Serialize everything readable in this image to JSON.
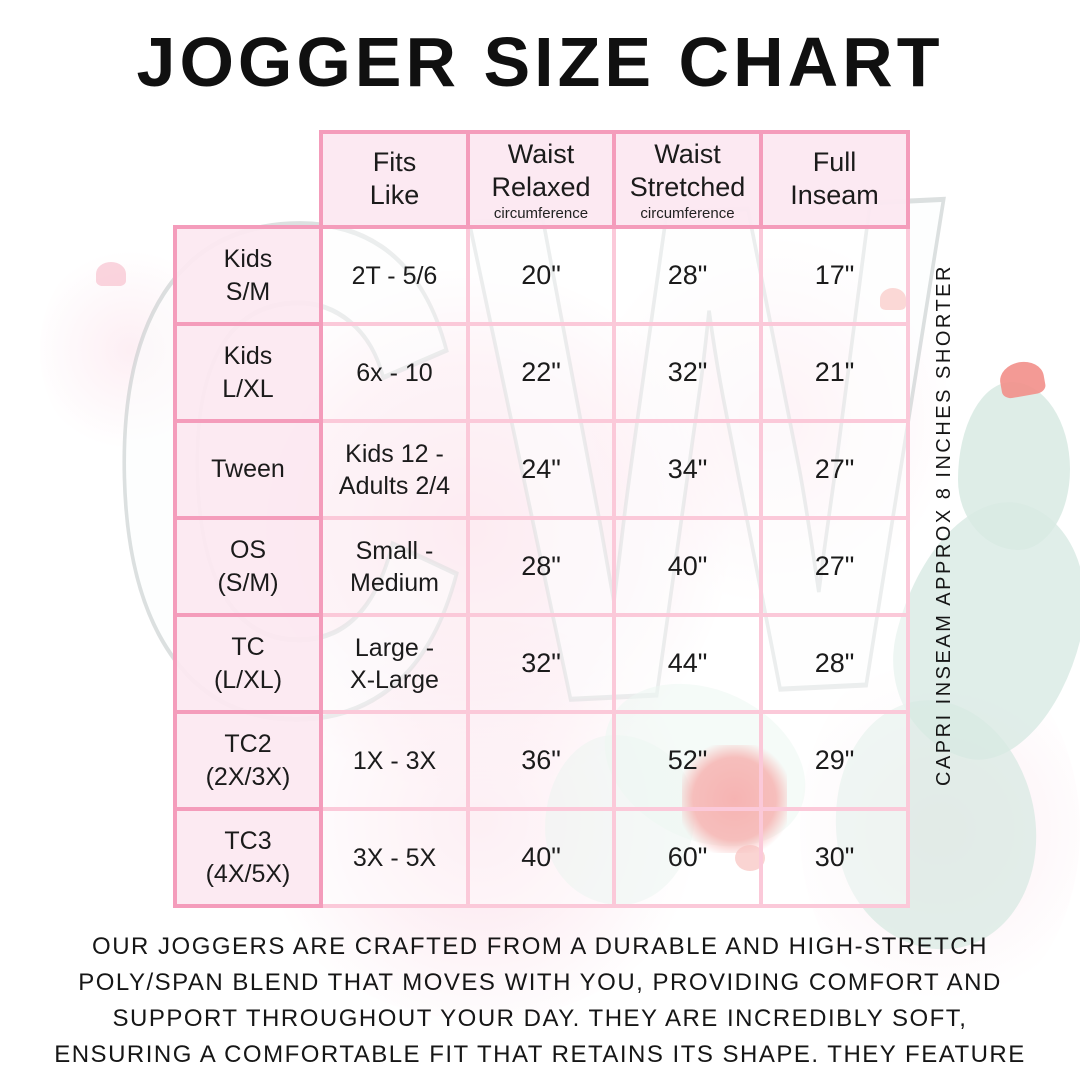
{
  "page": {
    "title": "JOGGER SIZE CHART"
  },
  "chart_data": {
    "type": "table",
    "title": "JOGGER SIZE CHART",
    "columns": [
      {
        "label": "Fits\nLike",
        "sub": ""
      },
      {
        "label": "Waist\nRelaxed",
        "sub": "circumference"
      },
      {
        "label": "Waist\nStretched",
        "sub": "circumference"
      },
      {
        "label": "Full\nInseam",
        "sub": ""
      }
    ],
    "rows": [
      {
        "size": "Kids\nS/M",
        "fits_like": "2T - 5/6",
        "waist_relaxed": "20\"",
        "waist_stretched": "28\"",
        "full_inseam": "17\""
      },
      {
        "size": "Kids\nL/XL",
        "fits_like": "6x - 10",
        "waist_relaxed": "22\"",
        "waist_stretched": "32\"",
        "full_inseam": "21\""
      },
      {
        "size": "Tween",
        "fits_like": "Kids 12 -\nAdults 2/4",
        "waist_relaxed": "24\"",
        "waist_stretched": "34\"",
        "full_inseam": "27\""
      },
      {
        "size": "OS\n(S/M)",
        "fits_like": "Small -\nMedium",
        "waist_relaxed": "28\"",
        "waist_stretched": "40\"",
        "full_inseam": "27\""
      },
      {
        "size": "TC\n(L/XL)",
        "fits_like": "Large -\nX-Large",
        "waist_relaxed": "32\"",
        "waist_stretched": "44\"",
        "full_inseam": "28\""
      },
      {
        "size": "TC2\n(2X/3X)",
        "fits_like": "1X - 3X",
        "waist_relaxed": "36\"",
        "waist_stretched": "52\"",
        "full_inseam": "29\""
      },
      {
        "size": "TC3\n(4X/5X)",
        "fits_like": "3X - 5X",
        "waist_relaxed": "40\"",
        "waist_stretched": "60\"",
        "full_inseam": "30\""
      }
    ]
  },
  "side_note": "CAPRI INSEAM APPROX 8 INCHES SHORTER",
  "footer": "OUR JOGGERS ARE CRAFTED FROM A DURABLE AND HIGH-STRETCH\nPOLY/SPAN BLEND THAT MOVES WITH YOU, PROVIDING COMFORT AND\nSUPPORT THROUGHOUT YOUR DAY. THEY ARE INCREDIBLY SOFT,\nENSURING A COMFORTABLE FIT THAT RETAINS ITS SHAPE. THEY FEATURE\nPOCKETS AND A DRAWSTRING WAIST.",
  "watermark": {
    "monogram": "CW"
  },
  "colors": {
    "border_strong": "#F49CBB",
    "border_light": "#FBC9D9",
    "cell_pink": "#FCE8F1",
    "watermark_teal": "#D8EAE3",
    "flower_red": "#EE5F5E",
    "text": "#1B1B1B"
  }
}
